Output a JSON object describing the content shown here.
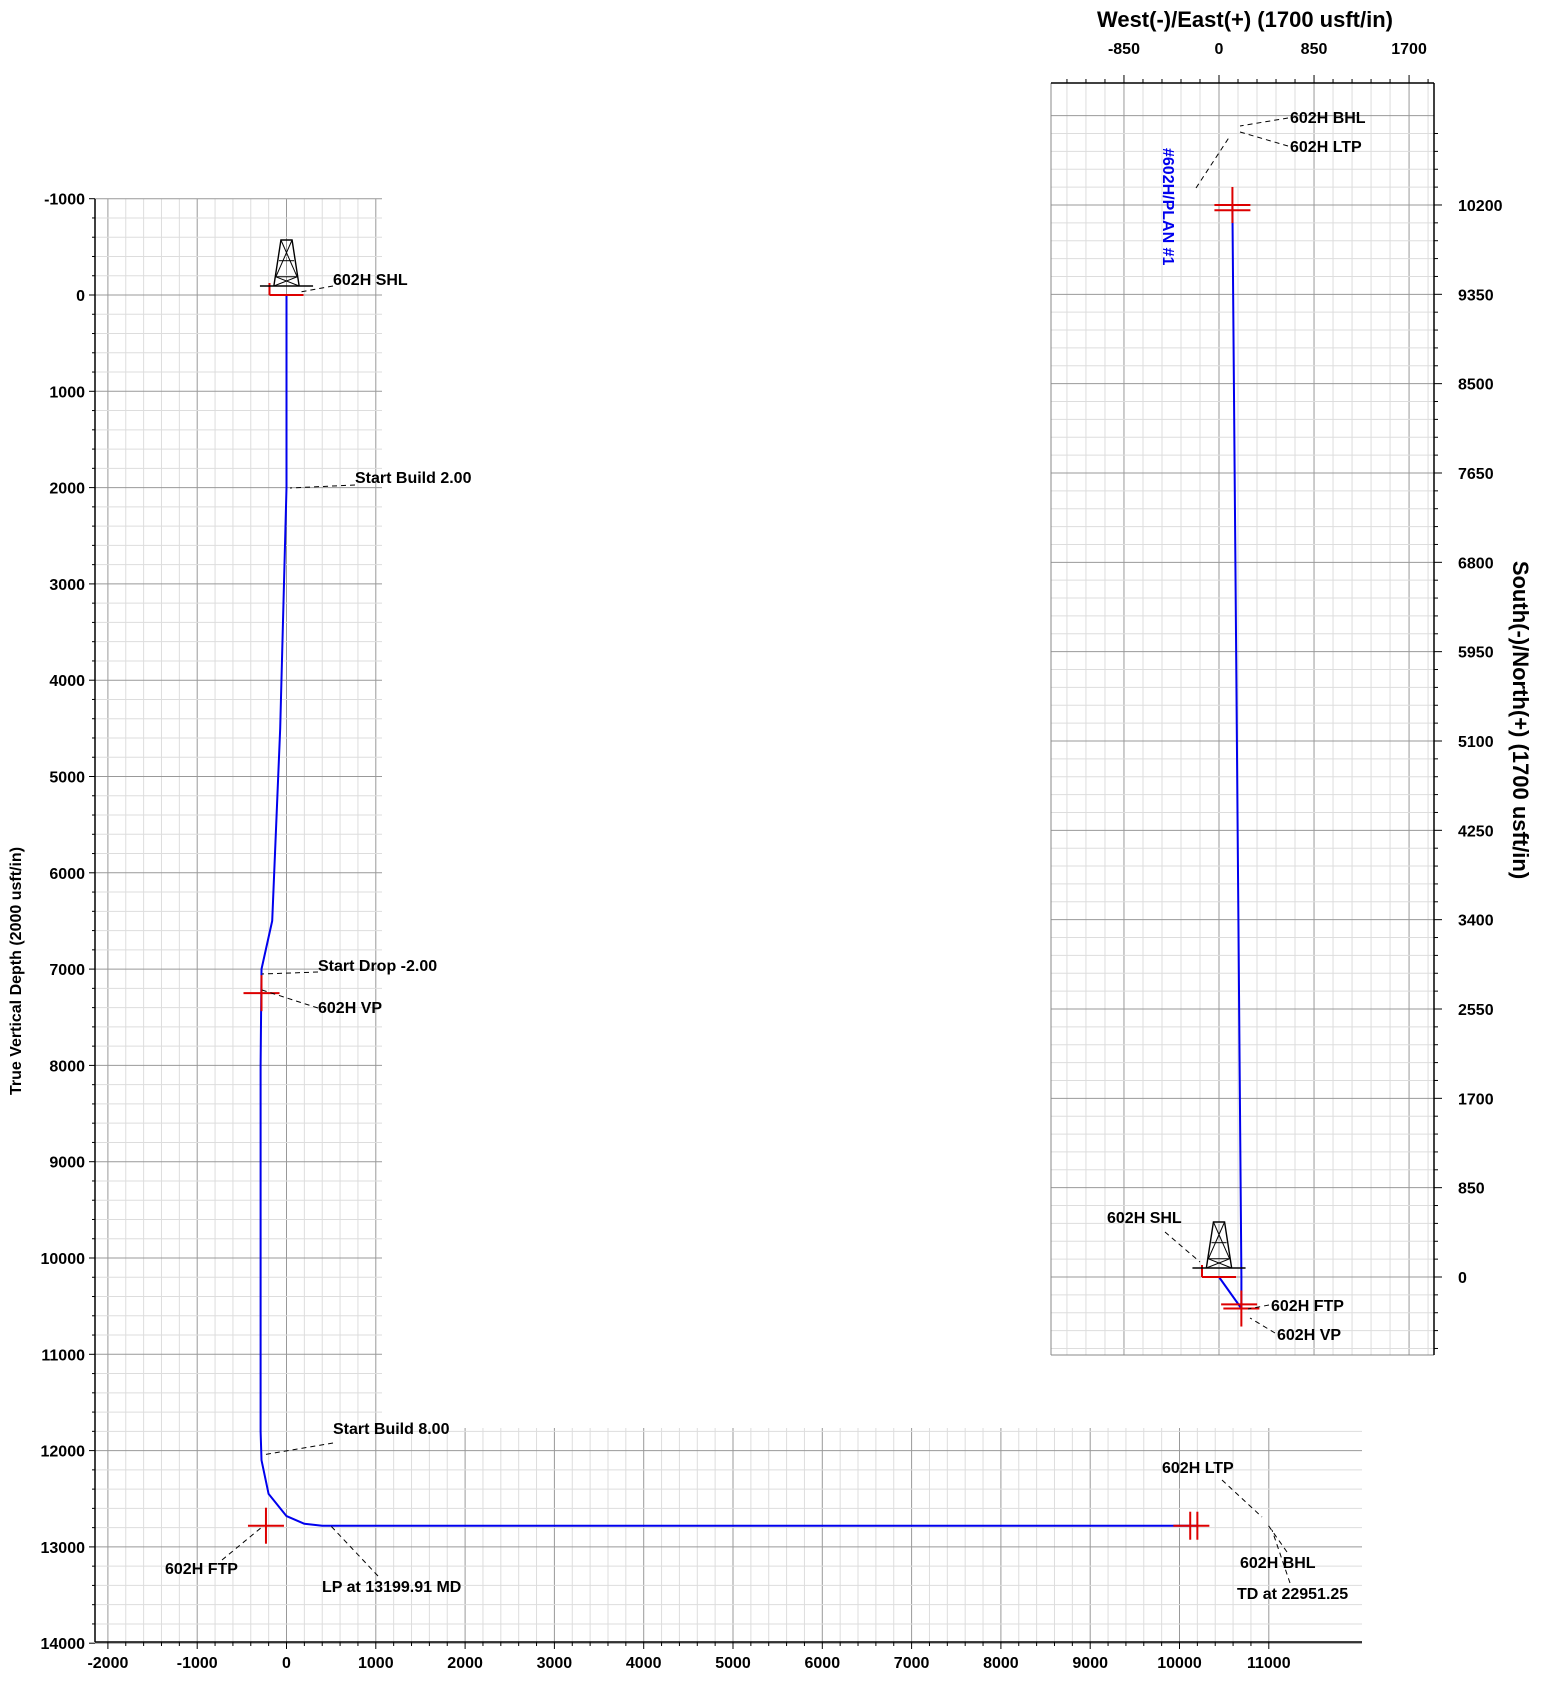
{
  "section": {
    "type": "line",
    "ylabel": "True Vertical Depth (2000 usft/in)",
    "y_ticks": [
      -1000,
      0,
      1000,
      2000,
      3000,
      4000,
      5000,
      6000,
      7000,
      8000,
      9000,
      10000,
      11000,
      12000,
      13000,
      14000
    ],
    "x_ticks": [
      -2000,
      -1000,
      0,
      1000,
      2000,
      3000,
      4000,
      5000,
      6000,
      7000,
      8000,
      9000,
      10000,
      11000
    ],
    "series": [
      {
        "color": "#0000ee",
        "points": [
          [
            0,
            0
          ],
          [
            0,
            2000
          ],
          [
            -70,
            4500
          ],
          [
            -160,
            6500
          ],
          [
            -280,
            7000
          ],
          [
            -290,
            8000
          ],
          [
            -290,
            11800
          ],
          [
            -280,
            12100
          ],
          [
            -200,
            12450
          ],
          [
            0,
            12680
          ],
          [
            200,
            12760
          ],
          [
            400,
            12780
          ],
          [
            1000,
            12780
          ],
          [
            5000,
            12780
          ],
          [
            10000,
            12780
          ],
          [
            10200,
            12780
          ]
        ]
      }
    ],
    "markers": [
      {
        "label": "602H SHL",
        "x": 0,
        "y": 0
      },
      {
        "label": "602H VP",
        "x": -280,
        "y": 7250
      },
      {
        "label": "602H FTP",
        "x": -230,
        "y": 12780
      },
      {
        "label": "602H LTP",
        "x": 10120,
        "y": 12780
      },
      {
        "label": "602H BHL",
        "x": 10200,
        "y": 12780
      }
    ],
    "annotations": [
      {
        "text": "602H SHL",
        "x": 0,
        "y": 0
      },
      {
        "text": "Start Build 2.00",
        "x": 0,
        "y": 2000
      },
      {
        "text": "Start Drop -2.00",
        "x": -280,
        "y": 7050
      },
      {
        "text": "602H VP",
        "x": -280,
        "y": 7250
      },
      {
        "text": "Start Build 8.00",
        "x": -290,
        "y": 12050
      },
      {
        "text": "602H FTP",
        "x": -230,
        "y": 12780
      },
      {
        "text": "LP at 13199.91 MD",
        "x": 420,
        "y": 12780
      },
      {
        "text": "602H LTP",
        "x": 10120,
        "y": 12780
      },
      {
        "text": "602H BHL",
        "x": 10200,
        "y": 12780
      },
      {
        "text": "TD at 22951.25",
        "x": 10200,
        "y": 12780
      }
    ]
  },
  "plan": {
    "type": "line",
    "xlabel": "West(-)/East(+) (1700 usft/in)",
    "ylabel": "South(-)/North(+) (1700 usft/in)",
    "x_ticks": [
      -850,
      0,
      850,
      1700
    ],
    "y_ticks": [
      0,
      850,
      1700,
      2550,
      3400,
      4250,
      5100,
      5950,
      6800,
      7650,
      8500,
      9350,
      10200
    ],
    "series_label": "#602H/PLAN #1",
    "series": [
      {
        "color": "#0000ee",
        "points": [
          [
            0,
            0
          ],
          [
            200,
            -300
          ],
          [
            200,
            0
          ],
          [
            120,
            10200
          ]
        ]
      }
    ],
    "markers": [
      {
        "label": "602H SHL",
        "x": 0,
        "y": 0
      },
      {
        "label": "602H FTP",
        "x": 180,
        "y": -260
      },
      {
        "label": "602H VP",
        "x": 200,
        "y": -300
      },
      {
        "label": "602H LTP",
        "x": 120,
        "y": 10150
      },
      {
        "label": "602H BHL",
        "x": 120,
        "y": 10200
      }
    ],
    "annotations": [
      {
        "text": "602H BHL",
        "x": 120,
        "y": 10200
      },
      {
        "text": "602H LTP",
        "x": 120,
        "y": 10150
      },
      {
        "text": "602H SHL",
        "x": 0,
        "y": 0
      },
      {
        "text": "602H FTP",
        "x": 180,
        "y": -260
      },
      {
        "text": "602H VP",
        "x": 200,
        "y": -300
      }
    ]
  },
  "colors": {
    "path": "#0000ee",
    "marker": "#dd0000",
    "grid_major": "#999999",
    "grid_minor": "#dddddd"
  },
  "icons": [
    "drilling-rig-icon"
  ]
}
